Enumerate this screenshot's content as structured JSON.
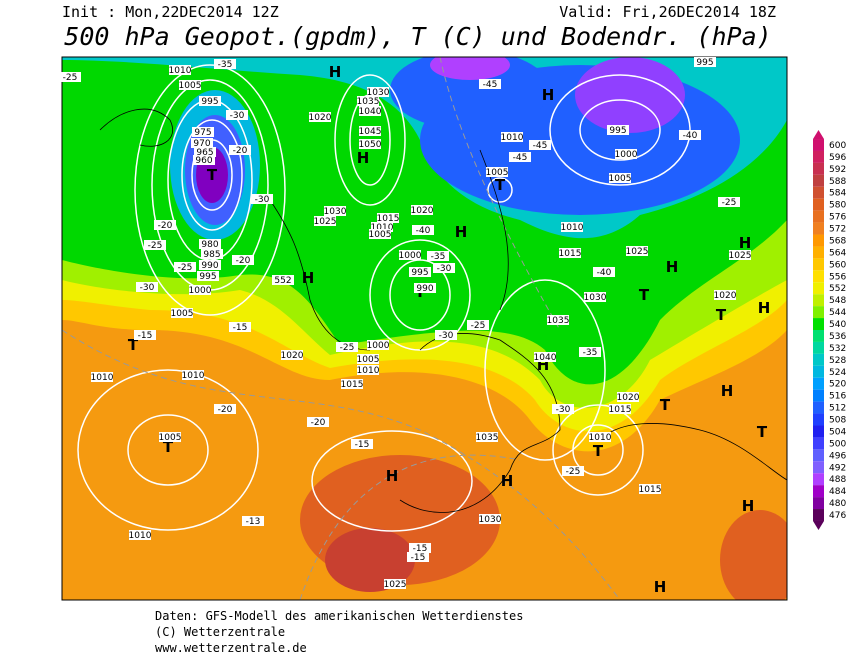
{
  "header": {
    "init": "Init : Mon,22DEC2014 12Z",
    "valid": "Valid: Fri,26DEC2014 18Z",
    "title": "500 hPa Geopot.(gpdm), T (C) und Bodendr. (hPa)"
  },
  "map": {
    "labels": [
      "T",
      "T",
      "T",
      "T",
      "T",
      "T",
      "T",
      "T",
      "T",
      "T",
      "H",
      "H",
      "H",
      "H",
      "H",
      "H",
      "H",
      "H",
      "H",
      "H",
      "H",
      "H",
      "H",
      "H",
      "1010",
      "1005",
      "995",
      "975",
      "970",
      "965",
      "960",
      "980",
      "985",
      "990",
      "995",
      "1000",
      "1005",
      "1020",
      "1030",
      "1035",
      "1040",
      "1045",
      "1050",
      "1030",
      "1025",
      "1015",
      "1010",
      "1005",
      "1020",
      "1000",
      "995",
      "990",
      "1000",
      "1005",
      "1010",
      "1015",
      "1020",
      "1010",
      "1010",
      "1005",
      "1010",
      "1010",
      "1005",
      "1010",
      "1015",
      "1025",
      "1030",
      "1035",
      "1040",
      "1020",
      "1015",
      "1010",
      "1015",
      "1030",
      "1035",
      "1025",
      "995",
      "1000",
      "1005",
      "995",
      "1025",
      "1020",
      "-35",
      "-25",
      "-30",
      "-20",
      "-30",
      "-20",
      "-25",
      "-20",
      "-25",
      "-30",
      "-40",
      "-35",
      "-30",
      "-25",
      "-30",
      "-25",
      "-15",
      "-15",
      "-20",
      "-20",
      "-15",
      "-13",
      "-15",
      "-15",
      "-45",
      "-45",
      "-45",
      "-40",
      "-25",
      "-40",
      "-35",
      "-30",
      "-25",
      "552"
    ]
  },
  "colorbar": {
    "labels": [
      600,
      596,
      592,
      588,
      584,
      580,
      576,
      572,
      568,
      564,
      560,
      556,
      552,
      548,
      544,
      540,
      536,
      532,
      528,
      524,
      520,
      516,
      512,
      508,
      504,
      500,
      496,
      492,
      488,
      484,
      480,
      476
    ],
    "colors": [
      "#d0106e",
      "#d02060",
      "#c83050",
      "#c04040",
      "#d05030",
      "#e06020",
      "#e87020",
      "#f08020",
      "#ff9800",
      "#ffb000",
      "#ffc800",
      "#ffe000",
      "#f0f000",
      "#c0f000",
      "#80f000",
      "#00e000",
      "#00e070",
      "#00d8a0",
      "#00c8c8",
      "#00b8e0",
      "#00a0ff",
      "#0080ff",
      "#2060ff",
      "#2040ff",
      "#2020f0",
      "#4040ff",
      "#6060ff",
      "#8060ff",
      "#b040ff",
      "#a000c8",
      "#8000a0",
      "#5a005a"
    ]
  },
  "footer": {
    "line1": "Daten: GFS-Modell des amerikanischen Wetterdienstes",
    "line2": "(C) Wetterzentrale",
    "line3": "www.wetterzentrale.de"
  }
}
